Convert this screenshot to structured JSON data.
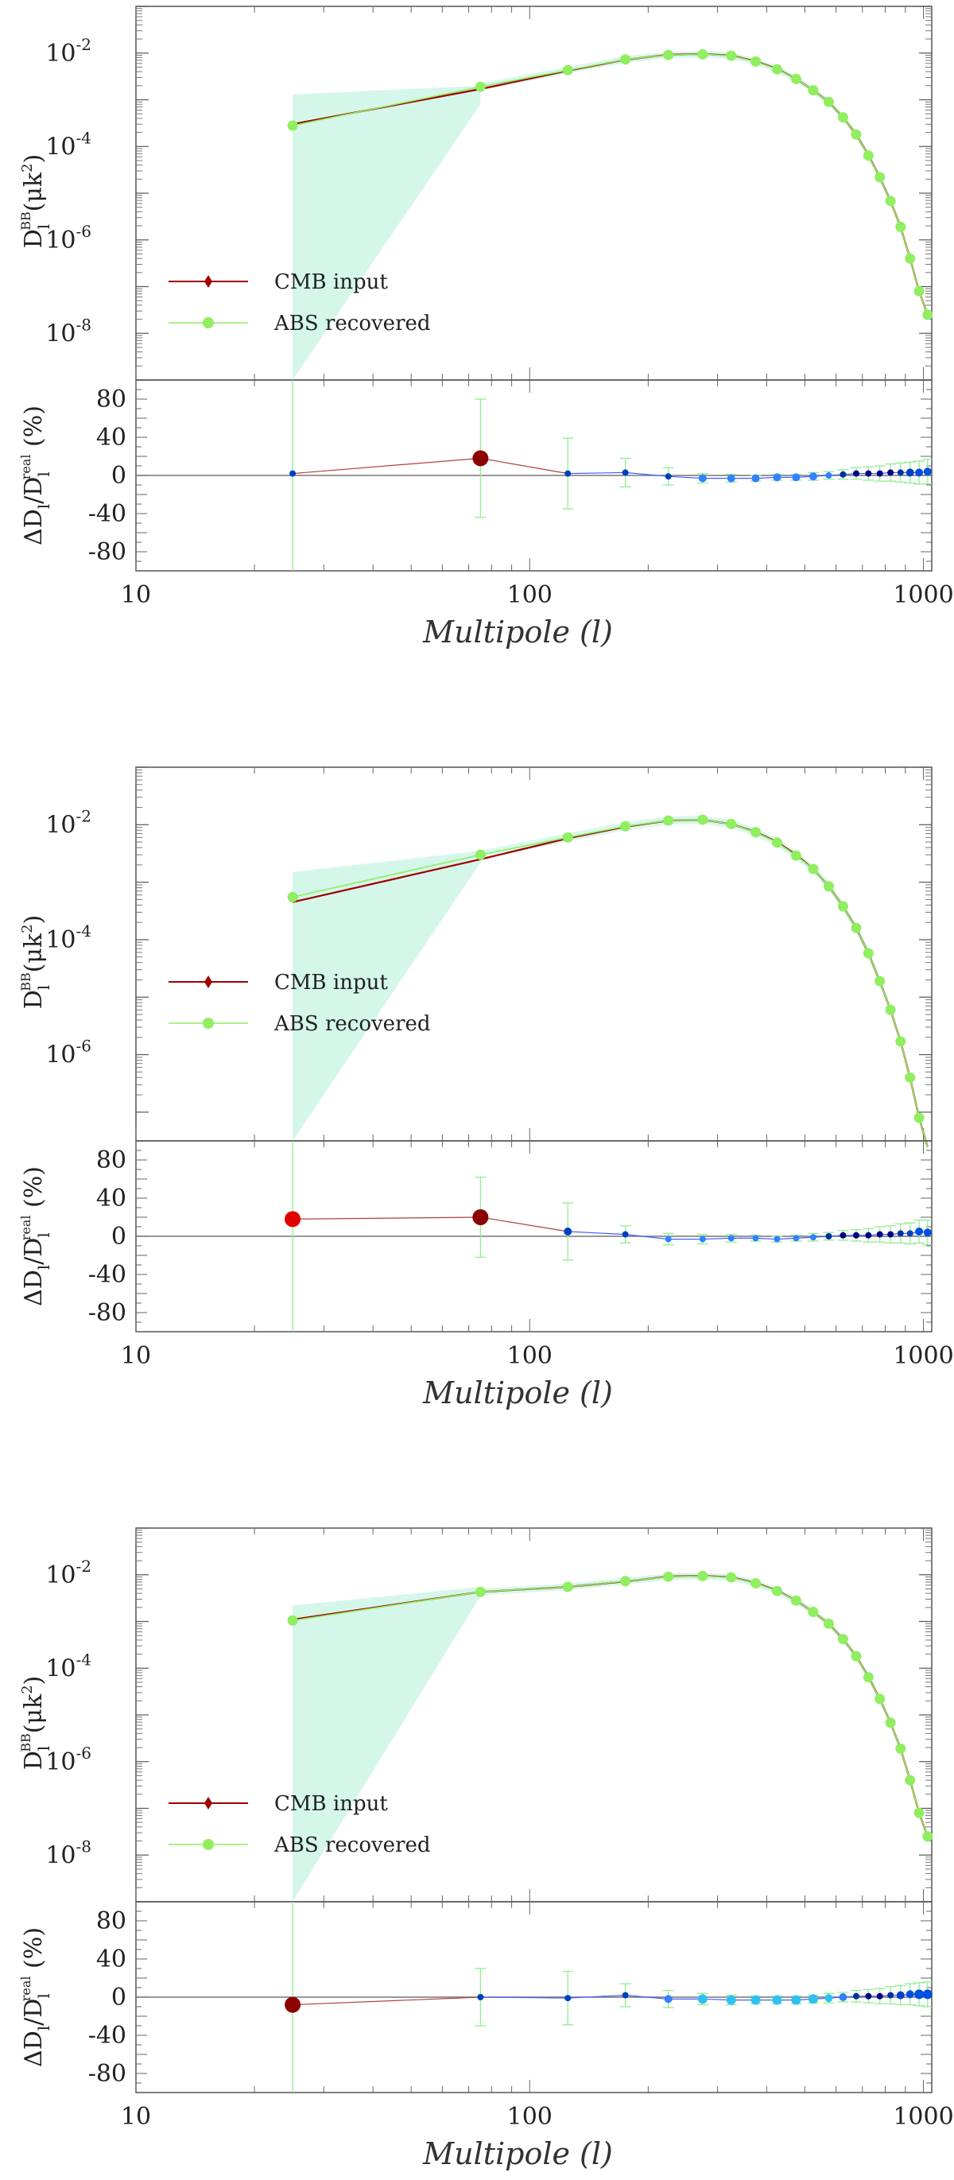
{
  "chart_data": [
    {
      "type": "line",
      "xscale": "log",
      "yscale": "log",
      "xlim": [
        10,
        1050
      ],
      "ylim_log10": [
        -9,
        -1
      ],
      "xticks": [
        "10",
        "100",
        "1000"
      ],
      "yticks": [
        {
          "base": "10",
          "exp": "-2"
        },
        {
          "base": "10",
          "exp": "-4"
        },
        {
          "base": "10",
          "exp": "-6"
        },
        {
          "base": "10",
          "exp": "-8"
        }
      ],
      "ylabel": {
        "main": "D",
        "sub": "l",
        "sup": "BB",
        "rest": "(μk",
        "rest_sup": "2",
        "close": ")"
      },
      "xlabel": "Multipole (l)",
      "legend_position": "bottom-left",
      "series": [
        {
          "name": "CMB input",
          "color": "#a00000",
          "x": [
            25,
            75,
            125,
            175,
            225,
            275,
            325,
            375,
            425,
            475,
            525,
            575,
            625,
            675,
            725,
            775,
            825,
            875,
            925,
            975,
            1025
          ],
          "y": [
            0.0003,
            0.0017,
            0.0042,
            0.0072,
            0.0092,
            0.0095,
            0.0089,
            0.0067,
            0.0046,
            0.0028,
            0.0016,
            0.0009,
            0.00042,
            0.00018,
            6.5e-05,
            2.2e-05,
            6.8e-06,
            1.9e-06,
            4e-07,
            8e-08,
            2.5e-08
          ]
        },
        {
          "name": "ABS recovered",
          "color": "#90ee60",
          "x": [
            25,
            75,
            125,
            175,
            225,
            275,
            325,
            375,
            425,
            475,
            525,
            575,
            625,
            675,
            725,
            775,
            825,
            875,
            925,
            975,
            1025
          ],
          "y": [
            0.00028,
            0.0019,
            0.0043,
            0.0073,
            0.0091,
            0.0094,
            0.0088,
            0.0066,
            0.0045,
            0.0028,
            0.0016,
            0.0009,
            0.00042,
            0.00018,
            6.4e-05,
            2.2e-05,
            6.8e-06,
            1.9e-06,
            4e-07,
            8e-08,
            2.5e-08
          ]
        }
      ],
      "band": {
        "color": "#d4f7ea",
        "x": [
          25,
          75
        ],
        "upper": [
          0.0013,
          0.002
        ],
        "lower": [
          1e-09,
          0.0008
        ]
      },
      "residual": {
        "ylabel": {
          "main": "ΔD",
          "sub": "l",
          "mid": "/D",
          "sub2": "l",
          "sup2": "real",
          "rest": " (%)"
        },
        "ylim": [
          -100,
          100
        ],
        "yticks": [
          "80",
          "40",
          "0",
          "-40",
          "-80"
        ],
        "values": [
          2,
          18,
          2,
          3,
          -1,
          -3,
          -3,
          -3,
          -2,
          -2,
          -1,
          0,
          1,
          2,
          2,
          2,
          3,
          3,
          3,
          3,
          4
        ],
        "errors": [
          120,
          62,
          37,
          15,
          9,
          5,
          4,
          3,
          3,
          3,
          4,
          4,
          5,
          6,
          7,
          8,
          9,
          10,
          11,
          12,
          13
        ],
        "point_colors": [
          "#0040c0",
          "#8b0000",
          "#0040c0",
          "#0040c0",
          "#0040c0",
          "#3080ff",
          "#3080ff",
          "#3080ff",
          "#3080ff",
          "#3080ff",
          "#3080ff",
          "#3080ff",
          "#0030a0",
          "#000080",
          "#000080",
          "#000080",
          "#000080",
          "#0030a0",
          "#0040c0",
          "#0050e0",
          "#0050e0"
        ],
        "point_sizes": [
          4,
          10,
          4,
          4,
          4,
          5,
          5,
          5,
          5,
          5,
          5,
          4,
          4,
          4,
          4,
          4,
          4,
          4,
          5,
          5,
          5
        ]
      }
    },
    {
      "type": "line",
      "xscale": "log",
      "yscale": "log",
      "xlim": [
        10,
        1050
      ],
      "ylim_log10": [
        -7.5,
        -1
      ],
      "xticks": [
        "10",
        "100",
        "1000"
      ],
      "yticks": [
        {
          "base": "10",
          "exp": "-2"
        },
        {
          "base": "10",
          "exp": "-4"
        },
        {
          "base": "10",
          "exp": "-6"
        }
      ],
      "ylabel": {
        "main": "D",
        "sub": "l",
        "sup": "BB",
        "rest": "(μk",
        "rest_sup": "2",
        "close": ")"
      },
      "xlabel": "Multipole (l)",
      "legend_position": "bottom-left",
      "series": [
        {
          "name": "CMB input",
          "color": "#a00000",
          "x": [
            25,
            75,
            125,
            175,
            225,
            275,
            325,
            375,
            425,
            475,
            525,
            575,
            625,
            675,
            725,
            775,
            825,
            875,
            925,
            975,
            1025
          ],
          "y": [
            0.00045,
            0.0025,
            0.0058,
            0.0092,
            0.0118,
            0.0122,
            0.0103,
            0.0075,
            0.005,
            0.003,
            0.0017,
            0.00085,
            0.00038,
            0.00016,
            5.8e-05,
            1.9e-05,
            6e-06,
            1.7e-06,
            4e-07,
            8e-08,
            2.5e-08
          ]
        },
        {
          "name": "ABS recovered",
          "color": "#90ee60",
          "x": [
            25,
            75,
            125,
            175,
            225,
            275,
            325,
            375,
            425,
            475,
            525,
            575,
            625,
            675,
            725,
            775,
            825,
            875,
            925,
            975,
            1025
          ],
          "y": [
            0.00055,
            0.003,
            0.006,
            0.0094,
            0.0118,
            0.0122,
            0.0103,
            0.0074,
            0.0049,
            0.0029,
            0.0017,
            0.00085,
            0.00038,
            0.00016,
            5.8e-05,
            1.9e-05,
            6e-06,
            1.7e-06,
            4e-07,
            8e-08,
            2.5e-08
          ]
        }
      ],
      "band": {
        "color": "#d4f7ea",
        "x": [
          25,
          75
        ],
        "upper": [
          0.0015,
          0.0035
        ],
        "lower": [
          3e-08,
          0.0022
        ]
      },
      "residual": {
        "ylabel": {
          "main": "ΔD",
          "sub": "l",
          "mid": "/D",
          "sub2": "l",
          "sup2": "real",
          "rest": " (%)"
        },
        "ylim": [
          -100,
          100
        ],
        "yticks": [
          "80",
          "40",
          "0",
          "-40",
          "-80"
        ],
        "values": [
          18,
          20,
          5,
          2,
          -3,
          -3,
          -2,
          -2,
          -3,
          -2,
          -1,
          0,
          1,
          1,
          1,
          2,
          2,
          3,
          3,
          5,
          4
        ],
        "errors": [
          120,
          42,
          30,
          9,
          6,
          5,
          4,
          3,
          3,
          3,
          4,
          4,
          5,
          6,
          7,
          8,
          9,
          10,
          11,
          12,
          13
        ],
        "point_colors": [
          "#e00000",
          "#8b0000",
          "#0040c0",
          "#0040c0",
          "#3080ff",
          "#3080ff",
          "#3080ff",
          "#3080ff",
          "#3080ff",
          "#3080ff",
          "#3080ff",
          "#0030a0",
          "#000080",
          "#000080",
          "#000080",
          "#000080",
          "#000080",
          "#0030a0",
          "#0040c0",
          "#0050e0",
          "#0050e0"
        ],
        "point_sizes": [
          10,
          10,
          5,
          4,
          4,
          4,
          4,
          4,
          4,
          4,
          4,
          4,
          4,
          4,
          4,
          4,
          4,
          4,
          4,
          5,
          5
        ]
      }
    },
    {
      "type": "line",
      "xscale": "log",
      "yscale": "log",
      "xlim": [
        10,
        1050
      ],
      "ylim_log10": [
        -9,
        -1
      ],
      "xticks": [
        "10",
        "100",
        "1000"
      ],
      "yticks": [
        {
          "base": "10",
          "exp": "-2"
        },
        {
          "base": "10",
          "exp": "-4"
        },
        {
          "base": "10",
          "exp": "-6"
        },
        {
          "base": "10",
          "exp": "-8"
        }
      ],
      "ylabel": {
        "main": "D",
        "sub": "l",
        "sup": "BB",
        "rest": "(μk",
        "rest_sup": "2",
        "close": ")"
      },
      "xlabel": "Multipole (l)",
      "legend_position": "bottom-left",
      "series": [
        {
          "name": "CMB input",
          "color": "#a00000",
          "x": [
            25,
            75,
            125,
            175,
            225,
            275,
            325,
            375,
            425,
            475,
            525,
            575,
            625,
            675,
            725,
            775,
            825,
            875,
            925,
            975,
            1025
          ],
          "y": [
            0.0011,
            0.0043,
            0.0055,
            0.0072,
            0.0092,
            0.0095,
            0.0089,
            0.0067,
            0.0046,
            0.0028,
            0.0016,
            0.0009,
            0.00042,
            0.00018,
            6.5e-05,
            2.2e-05,
            6.8e-06,
            1.9e-06,
            4e-07,
            8e-08,
            2.5e-08
          ]
        },
        {
          "name": "ABS recovered",
          "color": "#90ee60",
          "x": [
            25,
            75,
            125,
            175,
            225,
            275,
            325,
            375,
            425,
            475,
            525,
            575,
            625,
            675,
            725,
            775,
            825,
            875,
            925,
            975,
            1025
          ],
          "y": [
            0.00105,
            0.0043,
            0.0055,
            0.0073,
            0.0091,
            0.0094,
            0.0088,
            0.0066,
            0.0045,
            0.0028,
            0.0016,
            0.0009,
            0.00042,
            0.00018,
            6.4e-05,
            2.2e-05,
            6.8e-06,
            1.9e-06,
            4e-07,
            8e-08,
            2.5e-08
          ]
        }
      ],
      "band": {
        "color": "#d4f7ea",
        "x": [
          25,
          75
        ],
        "upper": [
          0.0022,
          0.0055
        ],
        "lower": [
          1e-09,
          0.0035
        ]
      },
      "residual": {
        "ylabel": {
          "main": "ΔD",
          "sub": "l",
          "mid": "/D",
          "sub2": "l",
          "sup2": "real",
          "rest": " (%)"
        },
        "ylim": [
          -100,
          100
        ],
        "yticks": [
          "80",
          "40",
          "0",
          "-40",
          "-80"
        ],
        "values": [
          -8,
          0,
          -1,
          2,
          -2,
          -2,
          -3,
          -3,
          -3,
          -3,
          -2,
          -1,
          0,
          1,
          1,
          1,
          2,
          2,
          3,
          3,
          3
        ],
        "errors": [
          135,
          30,
          28,
          12,
          9,
          6,
          5,
          4,
          4,
          4,
          4,
          5,
          5,
          6,
          7,
          8,
          9,
          10,
          11,
          12,
          13
        ],
        "point_colors": [
          "#8b0000",
          "#0040c0",
          "#0040c0",
          "#0040c0",
          "#3080ff",
          "#30c0f0",
          "#30c0f0",
          "#30c0f0",
          "#30c0f0",
          "#30c0f0",
          "#30c0f0",
          "#30c0f0",
          "#3080ff",
          "#0030a0",
          "#000080",
          "#000080",
          "#0030a0",
          "#0040c0",
          "#0050e0",
          "#0050e0",
          "#0050e0"
        ],
        "point_sizes": [
          10,
          4,
          4,
          4,
          5,
          6,
          6,
          6,
          6,
          6,
          6,
          5,
          5,
          4,
          4,
          4,
          4,
          5,
          5,
          6,
          6
        ]
      }
    }
  ]
}
